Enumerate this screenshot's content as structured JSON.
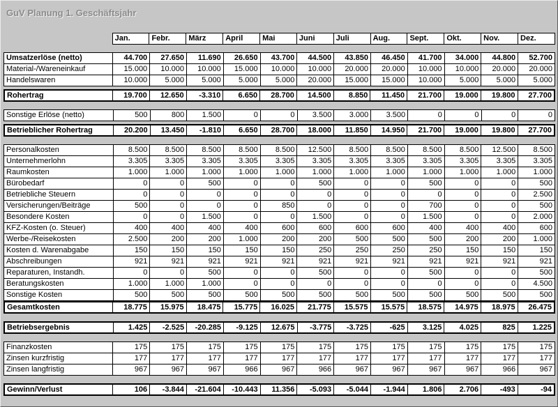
{
  "title": "GuV Planung 1. Geschäftsjahr",
  "colors": {
    "window_bg": "#c6c6c6",
    "cell_bg": "#ffffff",
    "grid_border": "#000000",
    "title_color": "#8b8b8b"
  },
  "months": [
    "Jan.",
    "Febr.",
    "März",
    "April",
    "Mai",
    "Juni",
    "Juli",
    "Aug.",
    "Sept.",
    "Okt.",
    "Nov.",
    "Dez."
  ],
  "sections": [
    {
      "gap": "lg",
      "rows": [
        {
          "label": "Umsatzerlöse (netto)",
          "bold": true,
          "values": [
            "44.700",
            "27.650",
            "11.690",
            "26.650",
            "43.700",
            "44.500",
            "43.850",
            "46.450",
            "41.700",
            "34.000",
            "44.800",
            "52.700"
          ]
        },
        {
          "label": "Material-/Wareneinkauf",
          "bold": false,
          "values": [
            "15.000",
            "10.000",
            "10.000",
            "15.000",
            "10.000",
            "10.000",
            "20.000",
            "20.000",
            "10.000",
            "10.000",
            "20.000",
            "20.000"
          ]
        },
        {
          "label": "Handelswaren",
          "bold": false,
          "values": [
            "10.000",
            "5.000",
            "5.000",
            "5.000",
            "5.000",
            "20.000",
            "15.000",
            "15.000",
            "10.000",
            "5.000",
            "5.000",
            "5.000"
          ]
        }
      ]
    },
    {
      "gap": "sm",
      "rows": [
        {
          "label": "Rohertrag",
          "bold": true,
          "values": [
            "19.700",
            "12.650",
            "-3.310",
            "6.650",
            "28.700",
            "14.500",
            "8.850",
            "11.450",
            "21.700",
            "19.000",
            "19.800",
            "27.700"
          ]
        }
      ]
    },
    {
      "gap": "lg",
      "rows": [
        {
          "label": "Sonstige Erlöse (netto)",
          "bold": false,
          "values": [
            "500",
            "800",
            "1.500",
            "0",
            "0",
            "3.500",
            "3.000",
            "3.500",
            "0",
            "0",
            "0",
            "0"
          ]
        }
      ]
    },
    {
      "gap": "sm",
      "rows": [
        {
          "label": "Betrieblicher Rohertrag",
          "bold": true,
          "values": [
            "20.200",
            "13.450",
            "-1.810",
            "6.650",
            "28.700",
            "18.000",
            "11.850",
            "14.950",
            "21.700",
            "19.000",
            "19.800",
            "27.700"
          ]
        }
      ]
    },
    {
      "gap": "lg",
      "rows": [
        {
          "label": "Personalkosten",
          "bold": false,
          "values": [
            "8.500",
            "8.500",
            "8.500",
            "8.500",
            "8.500",
            "12.500",
            "8.500",
            "8.500",
            "8.500",
            "8.500",
            "12.500",
            "8.500"
          ]
        },
        {
          "label": "Unternehmerlohn",
          "bold": false,
          "values": [
            "3.305",
            "3.305",
            "3.305",
            "3.305",
            "3.305",
            "3.305",
            "3.305",
            "3.305",
            "3.305",
            "3.305",
            "3.305",
            "3.305"
          ]
        },
        {
          "label": "Raumkosten",
          "bold": false,
          "values": [
            "1.000",
            "1.000",
            "1.000",
            "1.000",
            "1.000",
            "1.000",
            "1.000",
            "1.000",
            "1.000",
            "1.000",
            "1.000",
            "1.000"
          ]
        },
        {
          "label": "Bürobedarf",
          "bold": false,
          "values": [
            "0",
            "0",
            "500",
            "0",
            "0",
            "500",
            "0",
            "0",
            "500",
            "0",
            "0",
            "500"
          ]
        },
        {
          "label": "Betriebliche Steuern",
          "bold": false,
          "values": [
            "0",
            "0",
            "0",
            "0",
            "0",
            "0",
            "0",
            "0",
            "0",
            "0",
            "0",
            "2.500"
          ]
        },
        {
          "label": "Versicherungen/Beiträge",
          "bold": false,
          "values": [
            "500",
            "0",
            "0",
            "0",
            "850",
            "0",
            "0",
            "0",
            "700",
            "0",
            "0",
            "500"
          ]
        },
        {
          "label": "Besondere Kosten",
          "bold": false,
          "values": [
            "0",
            "0",
            "1.500",
            "0",
            "0",
            "1.500",
            "0",
            "0",
            "1.500",
            "0",
            "0",
            "2.000"
          ]
        },
        {
          "label": "KFZ-Kosten (o. Steuer)",
          "bold": false,
          "values": [
            "400",
            "400",
            "400",
            "400",
            "600",
            "600",
            "600",
            "600",
            "400",
            "400",
            "400",
            "600"
          ]
        },
        {
          "label": "Werbe-/Reisekosten",
          "bold": false,
          "values": [
            "2.500",
            "200",
            "200",
            "1.000",
            "200",
            "200",
            "500",
            "500",
            "500",
            "200",
            "200",
            "1.000"
          ]
        },
        {
          "label": "Kosten d. Warenabgabe",
          "bold": false,
          "values": [
            "150",
            "150",
            "150",
            "150",
            "150",
            "250",
            "250",
            "250",
            "250",
            "150",
            "150",
            "150"
          ]
        },
        {
          "label": "Abschreibungen",
          "bold": false,
          "values": [
            "921",
            "921",
            "921",
            "921",
            "921",
            "921",
            "921",
            "921",
            "921",
            "921",
            "921",
            "921"
          ]
        },
        {
          "label": "Reparaturen, Instandh.",
          "bold": false,
          "values": [
            "0",
            "0",
            "500",
            "0",
            "0",
            "500",
            "0",
            "0",
            "500",
            "0",
            "0",
            "500"
          ]
        },
        {
          "label": "Beratungskosten",
          "bold": false,
          "values": [
            "1.000",
            "1.000",
            "1.000",
            "0",
            "0",
            "0",
            "0",
            "0",
            "0",
            "0",
            "0",
            "4.500"
          ]
        },
        {
          "label": "Sonstige Kosten",
          "bold": false,
          "values": [
            "500",
            "500",
            "500",
            "500",
            "500",
            "500",
            "500",
            "500",
            "500",
            "500",
            "500",
            "500"
          ]
        }
      ]
    },
    {
      "gap": "none",
      "rows": [
        {
          "label": "Gesamtkosten",
          "bold": true,
          "values": [
            "18.775",
            "15.975",
            "18.475",
            "15.775",
            "16.025",
            "21.775",
            "15.575",
            "15.575",
            "18.575",
            "14.975",
            "18.975",
            "26.475"
          ]
        }
      ]
    },
    {
      "gap": "lg",
      "rows": [
        {
          "label": "Betriebsergebnis",
          "bold": true,
          "values": [
            "1.425",
            "-2.525",
            "-20.285",
            "-9.125",
            "12.675",
            "-3.775",
            "-3.725",
            "-625",
            "3.125",
            "4.025",
            "825",
            "1.225"
          ]
        }
      ]
    },
    {
      "gap": "lg",
      "rows": [
        {
          "label": "Finanzkosten",
          "bold": false,
          "values": [
            "175",
            "175",
            "175",
            "175",
            "175",
            "175",
            "175",
            "175",
            "175",
            "175",
            "175",
            "175"
          ]
        },
        {
          "label": "Zinsen kurzfristig",
          "bold": false,
          "values": [
            "177",
            "177",
            "177",
            "177",
            "177",
            "177",
            "177",
            "177",
            "177",
            "177",
            "177",
            "177"
          ]
        },
        {
          "label": "Zinsen langfristig",
          "bold": false,
          "values": [
            "967",
            "967",
            "967",
            "966",
            "967",
            "966",
            "967",
            "967",
            "967",
            "967",
            "966",
            "967"
          ]
        }
      ]
    },
    {
      "gap": "lg",
      "rows": [
        {
          "label": "Gewinn/Verlust",
          "bold": true,
          "values": [
            "106",
            "-3.844",
            "-21.604",
            "-10.443",
            "11.356",
            "-5.093",
            "-5.044",
            "-1.944",
            "1.806",
            "2.706",
            "-493",
            "-94"
          ]
        }
      ]
    }
  ]
}
